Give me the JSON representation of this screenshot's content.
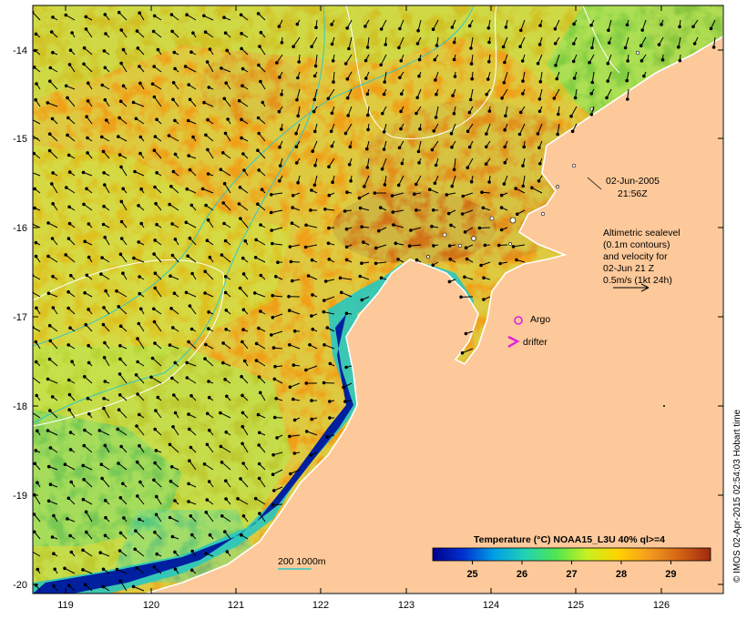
{
  "map": {
    "axes": {
      "longitudes": [
        "119",
        "120",
        "121",
        "122",
        "123",
        "124",
        "125",
        "126"
      ],
      "latitudes": [
        "-14",
        "-15",
        "-16",
        "-17",
        "-18",
        "-19",
        "-20"
      ]
    },
    "timestamp": {
      "date": "02-Jun-2005",
      "time": "21:56Z"
    },
    "velocity_note": [
      "Altimetric sealevel",
      "(0.1m contours)",
      "and velocity for",
      "02-Jun 21 Z",
      "0.5m/s (1kt 24h)"
    ],
    "legend": {
      "argo_label": "Argo",
      "drifter_label": "drifter",
      "argo_color": "#e21ee2",
      "drifter_color": "#e21ee2",
      "depth_label": "200  1000m",
      "depth_line_color": "#30c8c8"
    },
    "colorbar": {
      "title": "Temperature (°C) NOAA15_L3U 40% ql>=4",
      "ticks": [
        "25",
        "26",
        "27",
        "28",
        "29"
      ],
      "range": [
        24.2,
        29.8
      ],
      "stops": [
        "#00008c",
        "#0032d2",
        "#00a0e6",
        "#20d2b4",
        "#50e650",
        "#c8f020",
        "#ffd200",
        "#f59b1e",
        "#d26414",
        "#a02810"
      ]
    },
    "credit": "© IMOS 02-Apr-2015 02:54:03 Hobart time",
    "colors": {
      "land": "#fdc99a",
      "coastline": "#ffffff",
      "sealevel_contour": "#ffffff"
    }
  }
}
